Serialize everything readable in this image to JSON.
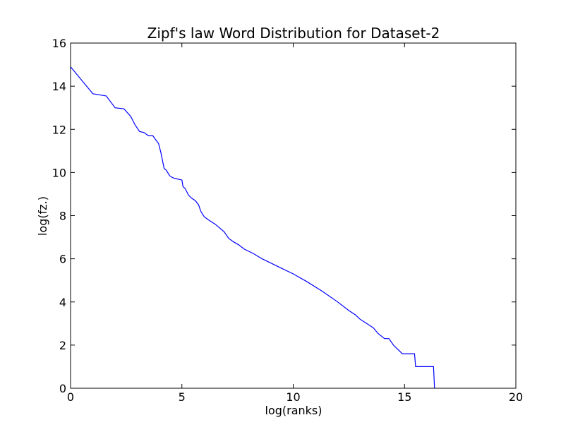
{
  "chart_data": {
    "type": "line",
    "title": "Zipf's law Word Distribution for Dataset-2",
    "xlabel": "log(ranks)",
    "ylabel": "log(fz.)",
    "xlim": [
      0,
      20
    ],
    "ylim": [
      0,
      16
    ],
    "xticks": [
      0,
      5,
      10,
      15,
      20
    ],
    "yticks": [
      0,
      2,
      4,
      6,
      8,
      10,
      12,
      14,
      16
    ],
    "grid": false,
    "series": [
      {
        "color": "#0000ff",
        "x": [
          0,
          1.0,
          1.6,
          2.0,
          2.4,
          2.7,
          2.9,
          3.1,
          3.3,
          3.5,
          3.7,
          3.8,
          3.95,
          4.05,
          4.2,
          4.3,
          4.45,
          4.6,
          4.8,
          5.0,
          5.05,
          5.15,
          5.3,
          5.45,
          5.6,
          5.75,
          5.85,
          6.0,
          6.2,
          6.5,
          6.9,
          7.1,
          7.3,
          7.55,
          7.8,
          8.2,
          8.6,
          9.0,
          9.5,
          10.0,
          10.6,
          11.3,
          12.0,
          12.5,
          12.8,
          13.0,
          13.3,
          13.6,
          13.8,
          14.1,
          14.3,
          14.5,
          14.9,
          15.45,
          15.5,
          16.3,
          16.35
        ],
        "y": [
          14.9,
          13.65,
          13.55,
          13.0,
          12.95,
          12.6,
          12.2,
          11.9,
          11.85,
          11.7,
          11.7,
          11.55,
          11.35,
          10.95,
          10.2,
          10.1,
          9.85,
          9.75,
          9.7,
          9.65,
          9.35,
          9.25,
          8.95,
          8.8,
          8.7,
          8.5,
          8.2,
          7.95,
          7.8,
          7.6,
          7.25,
          6.95,
          6.8,
          6.65,
          6.45,
          6.25,
          6.0,
          5.8,
          5.55,
          5.3,
          4.95,
          4.5,
          4.0,
          3.6,
          3.4,
          3.2,
          3.0,
          2.8,
          2.55,
          2.3,
          2.3,
          2.0,
          1.6,
          1.6,
          1.0,
          1.0,
          0.0
        ]
      }
    ]
  }
}
